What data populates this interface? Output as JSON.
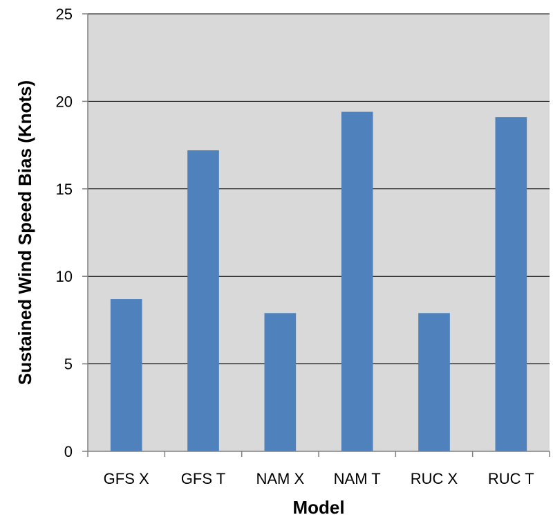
{
  "chart_data": {
    "type": "bar",
    "title": "",
    "xlabel": "Model",
    "ylabel": "Sustained Wind Speed Bias (Knots)",
    "categories": [
      "GFS X",
      "GFS T",
      "NAM X",
      "NAM T",
      "RUC X",
      "RUC T"
    ],
    "values": [
      8.7,
      17.2,
      7.9,
      19.4,
      7.9,
      19.1
    ],
    "ylim": [
      0,
      25
    ],
    "yticks": [
      0,
      5,
      10,
      15,
      20,
      25
    ],
    "grid": true,
    "legend": "none",
    "colors": {
      "bar": "#4F81BD",
      "plot_background": "#D9D9D9",
      "gridline": "#000000"
    }
  }
}
